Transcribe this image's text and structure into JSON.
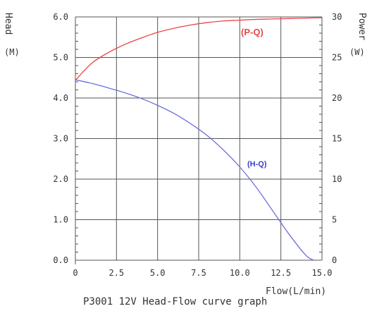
{
  "chart_data": {
    "type": "line",
    "title": "P3001 12V Head-Flow curve graph",
    "xlabel": "Flow(L/min)",
    "ylabel_left": "Head",
    "ylabel_left_unit": "(M)",
    "ylabel_right": "Power",
    "ylabel_right_unit": "(W)",
    "xlim": [
      0,
      15
    ],
    "ylim_left": [
      0,
      6
    ],
    "ylim_right": [
      0,
      30
    ],
    "x_ticks": [
      "0",
      "2.5",
      "5.0",
      "7.5",
      "10.0",
      "12.5",
      "15.0"
    ],
    "y_left_ticks": [
      "0.0",
      "1.0",
      "2.0",
      "3.0",
      "4.0",
      "5.0",
      "6.0"
    ],
    "y_right_ticks": [
      "0",
      "5",
      "10",
      "15",
      "20",
      "25",
      "30"
    ],
    "grid": true,
    "series": [
      {
        "name": "(P-Q)",
        "axis": "right",
        "color": "#e8474a",
        "x": [
          0,
          1,
          2,
          3,
          4,
          5,
          6,
          7,
          8,
          9,
          10,
          11,
          12,
          13,
          14,
          15
        ],
        "y": [
          22.2,
          24.3,
          25.6,
          26.6,
          27.4,
          28.1,
          28.6,
          29.0,
          29.3,
          29.5,
          29.6,
          29.7,
          29.75,
          29.8,
          29.85,
          29.9
        ]
      },
      {
        "name": "(H-Q)",
        "axis": "left",
        "color": "#6b6fe0",
        "x": [
          0,
          1,
          2,
          3,
          4,
          5,
          6,
          7,
          8,
          9,
          10,
          11,
          12,
          13,
          14,
          14.5
        ],
        "y": [
          4.45,
          4.36,
          4.25,
          4.13,
          3.99,
          3.82,
          3.62,
          3.37,
          3.08,
          2.72,
          2.3,
          1.8,
          1.22,
          0.64,
          0.13,
          0.0
        ]
      }
    ]
  }
}
